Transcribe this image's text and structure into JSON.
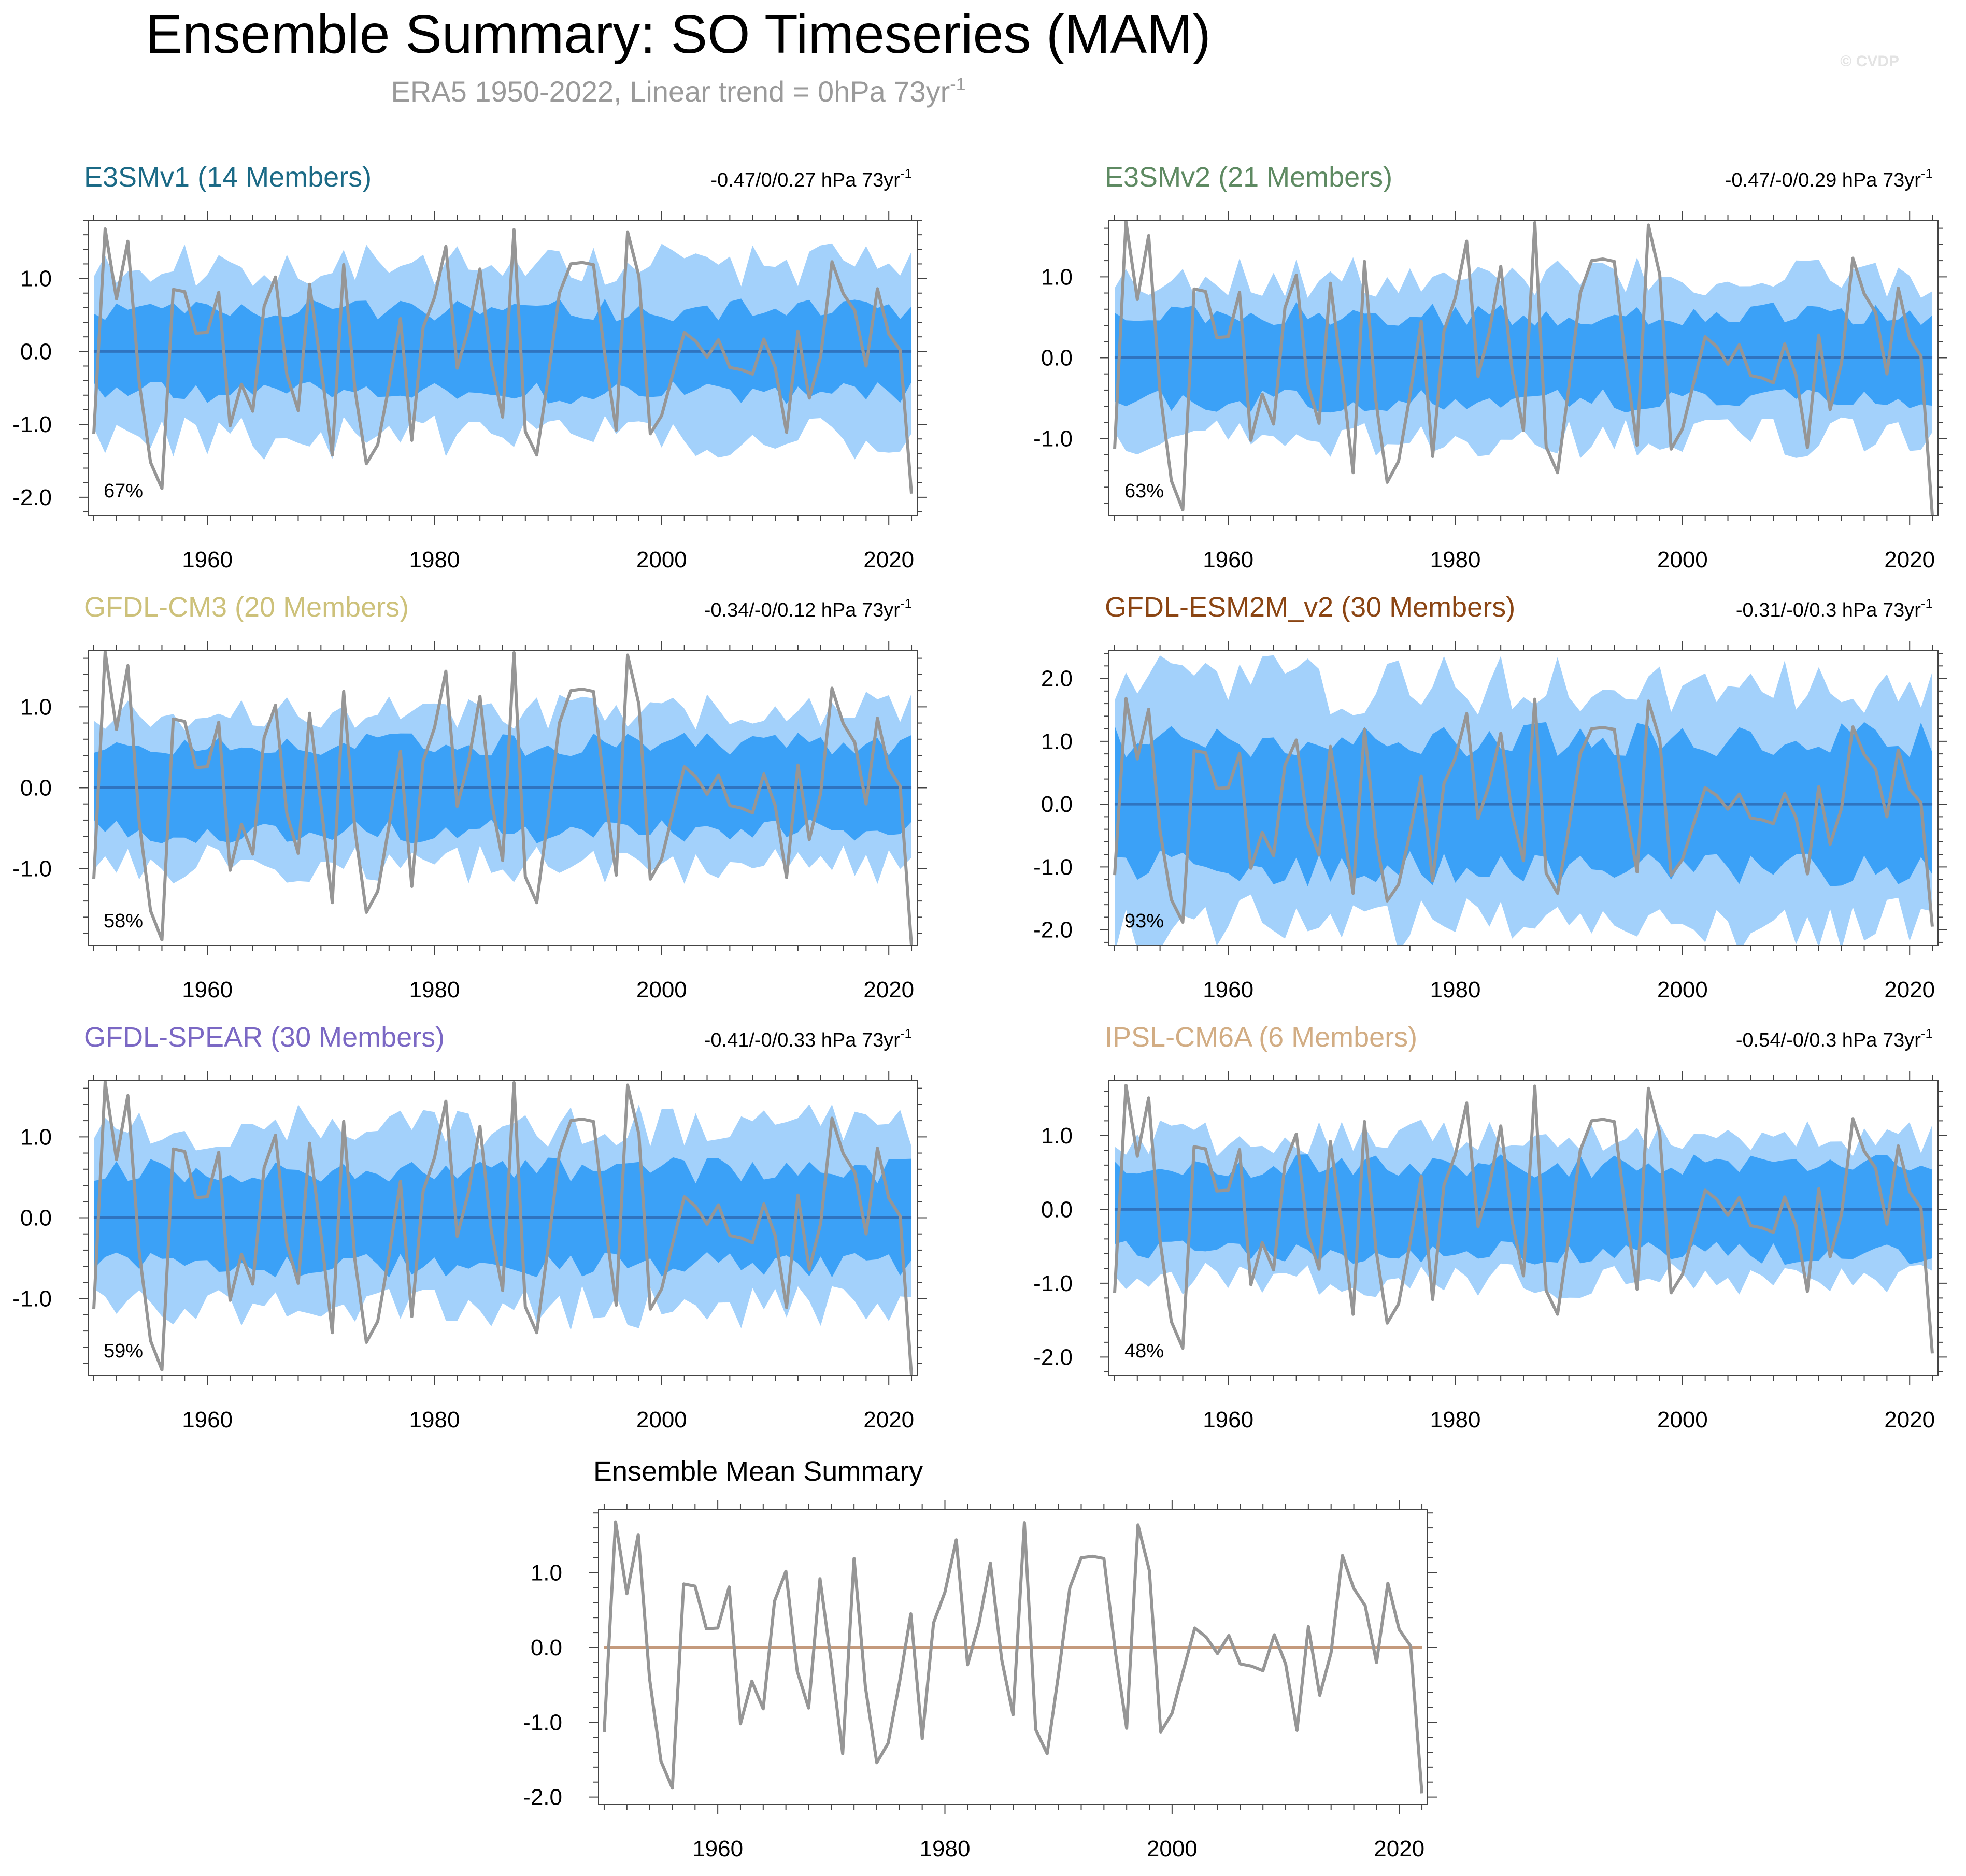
{
  "title": "Ensemble Summary: SO Timeseries (MAM)",
  "subtitle": {
    "text": "ERA5 1950-2022, Linear trend = 0hPa 73yr",
    "sup": "-1"
  },
  "watermark": "© CVDP",
  "colors": {
    "outer_band": "#a3d1fb",
    "inner_band": "#3ba1f7",
    "mean_line": "#2f74c0",
    "obs_line": "#969696",
    "summary_mean_line": "#c49a7c",
    "frame": "#444444"
  },
  "chart_data": {
    "type": "line",
    "x": [
      1950,
      1951,
      1952,
      1953,
      1954,
      1955,
      1956,
      1957,
      1958,
      1959,
      1960,
      1961,
      1962,
      1963,
      1964,
      1965,
      1966,
      1967,
      1968,
      1969,
      1970,
      1971,
      1972,
      1973,
      1974,
      1975,
      1976,
      1977,
      1978,
      1979,
      1980,
      1981,
      1982,
      1983,
      1984,
      1985,
      1986,
      1987,
      1988,
      1989,
      1990,
      1991,
      1992,
      1993,
      1994,
      1995,
      1996,
      1997,
      1998,
      1999,
      2000,
      2001,
      2002,
      2003,
      2004,
      2005,
      2006,
      2007,
      2008,
      2009,
      2010,
      2011,
      2012,
      2013,
      2014,
      2015,
      2016,
      2017,
      2018,
      2019,
      2020,
      2021,
      2022
    ],
    "observed_name": "ERA5",
    "observed": [
      -1.13,
      1.68,
      0.72,
      1.51,
      -0.42,
      -1.52,
      -1.88,
      0.85,
      0.82,
      0.25,
      0.26,
      0.81,
      -1.02,
      -0.45,
      -0.82,
      0.62,
      1.02,
      -0.32,
      -0.81,
      0.92,
      -0.2,
      -1.42,
      1.19,
      -0.53,
      -1.54,
      -1.28,
      -0.47,
      0.45,
      -1.22,
      0.33,
      0.74,
      1.44,
      -0.23,
      0.32,
      1.13,
      -0.16,
      -0.9,
      1.67,
      -1.1,
      -1.42,
      -0.36,
      0.8,
      1.2,
      1.22,
      1.19,
      -0.05,
      -1.08,
      1.64,
      1.03,
      -1.13,
      -0.88,
      -0.3,
      0.26,
      0.14,
      -0.08,
      0.16,
      -0.22,
      -0.25,
      -0.31,
      0.17,
      -0.22,
      -1.11,
      0.28,
      -0.64,
      -0.07,
      1.23,
      0.79,
      0.56,
      -0.2,
      0.86,
      0.24,
      0.02,
      -1.95
    ],
    "xlim": [
      1949.5,
      2022.5
    ],
    "panels": [
      {
        "name": "E3SMv1",
        "title": "E3SMv1 (14 Members)",
        "title_color": "#1b6a86",
        "trend_text": "-0.47/0/0.27 hPa 73yr",
        "trend_sup": "-1",
        "percent_label": "67%",
        "ylim": [
          -2.25,
          1.8
        ],
        "yticks": [
          -2.0,
          -1.0,
          0.0,
          1.0
        ],
        "ytick_labels": [
          "-2.0",
          "-1.0",
          "0.0",
          "1.0"
        ],
        "xticks": [
          1960,
          1980,
          2000,
          2020
        ],
        "xtick_labels": [
          "1960",
          "1980",
          "2000",
          "2020"
        ],
        "ensemble_mean": 0.0,
        "outer_spread": 1.22,
        "inner_spread": 0.58,
        "seed": 11
      },
      {
        "name": "E3SMv2",
        "title": "E3SMv2 (21 Members)",
        "title_color": "#5e8a62",
        "trend_text": "-0.47/-0/0.29 hPa 73yr",
        "trend_sup": "-1",
        "percent_label": "63%",
        "ylim": [
          -1.95,
          1.7
        ],
        "yticks": [
          -1.0,
          0.0,
          1.0
        ],
        "ytick_labels": [
          "-1.0",
          "0.0",
          "1.0"
        ],
        "xticks": [
          1960,
          1980,
          2000,
          2020
        ],
        "xtick_labels": [
          "1960",
          "1980",
          "2000",
          "2020"
        ],
        "ensemble_mean": 0.0,
        "outer_spread": 1.02,
        "inner_spread": 0.55,
        "seed": 23
      },
      {
        "name": "GFDL-CM3",
        "title": "GFDL-CM3 (20 Members)",
        "title_color": "#cdc17a",
        "trend_text": "-0.34/-0/0.12 hPa 73yr",
        "trend_sup": "-1",
        "percent_label": "58%",
        "ylim": [
          -1.95,
          1.7
        ],
        "yticks": [
          -1.0,
          0.0,
          1.0
        ],
        "ytick_labels": [
          "-1.0",
          "0.0",
          "1.0"
        ],
        "xticks": [
          1960,
          1980,
          2000,
          2020
        ],
        "xtick_labels": [
          "1960",
          "1980",
          "2000",
          "2020"
        ],
        "ensemble_mean": 0.0,
        "outer_spread": 0.98,
        "inner_spread": 0.55,
        "seed": 37
      },
      {
        "name": "GFDL-ESM2M_v2",
        "title": "GFDL-ESM2M_v2 (30 Members)",
        "title_color": "#8b4513",
        "trend_text": "-0.31/-0/0.3 hPa 73yr",
        "trend_sup": "-1",
        "percent_label": "93%",
        "ylim": [
          -2.25,
          2.45
        ],
        "yticks": [
          -2.0,
          -1.0,
          0.0,
          1.0,
          2.0
        ],
        "ytick_labels": [
          "-2.0",
          "-1.0",
          "0.0",
          "1.0",
          "2.0"
        ],
        "xticks": [
          1960,
          1980,
          2000,
          2020
        ],
        "xtick_labels": [
          "1960",
          "1980",
          "2000",
          "2020"
        ],
        "ensemble_mean": 0.0,
        "outer_spread": 1.95,
        "inner_spread": 1.05,
        "seed": 41
      },
      {
        "name": "GFDL-SPEAR",
        "title": "GFDL-SPEAR (30 Members)",
        "title_color": "#7b68c4",
        "trend_text": "-0.41/-0/0.33 hPa 73yr",
        "trend_sup": "-1",
        "percent_label": "59%",
        "ylim": [
          -1.95,
          1.7
        ],
        "yticks": [
          -1.0,
          0.0,
          1.0
        ],
        "ytick_labels": [
          "-1.0",
          "0.0",
          "1.0"
        ],
        "xticks": [
          1960,
          1980,
          2000,
          2020
        ],
        "xtick_labels": [
          "1960",
          "1980",
          "2000",
          "2020"
        ],
        "ensemble_mean": 0.0,
        "outer_spread": 1.15,
        "inner_spread": 0.6,
        "seed": 53
      },
      {
        "name": "IPSL-CM6A",
        "title": "IPSL-CM6A (6 Members)",
        "title_color": "#d2ad84",
        "trend_text": "-0.54/-0/0.3 hPa 73yr",
        "trend_sup": "-1",
        "percent_label": "48%",
        "ylim": [
          -2.25,
          1.75
        ],
        "yticks": [
          -2.0,
          -1.0,
          0.0,
          1.0
        ],
        "ytick_labels": [
          "-2.0",
          "-1.0",
          "0.0",
          "1.0"
        ],
        "xticks": [
          1960,
          1980,
          2000,
          2020
        ],
        "xtick_labels": [
          "1960",
          "1980",
          "2000",
          "2020"
        ],
        "ensemble_mean": 0.0,
        "outer_spread": 1.0,
        "inner_spread": 0.6,
        "seed": 67
      }
    ],
    "summary": {
      "title": "Ensemble Mean Summary",
      "ylim": [
        -2.1,
        1.85
      ],
      "yticks": [
        -2.0,
        -1.0,
        0.0,
        1.0
      ],
      "ytick_labels": [
        "-2.0",
        "-1.0",
        "0.0",
        "1.0"
      ],
      "xticks": [
        1960,
        1980,
        2000,
        2020
      ],
      "xtick_labels": [
        "1960",
        "1980",
        "2000",
        "2020"
      ],
      "ensemble_mean_line": 0.0
    }
  }
}
